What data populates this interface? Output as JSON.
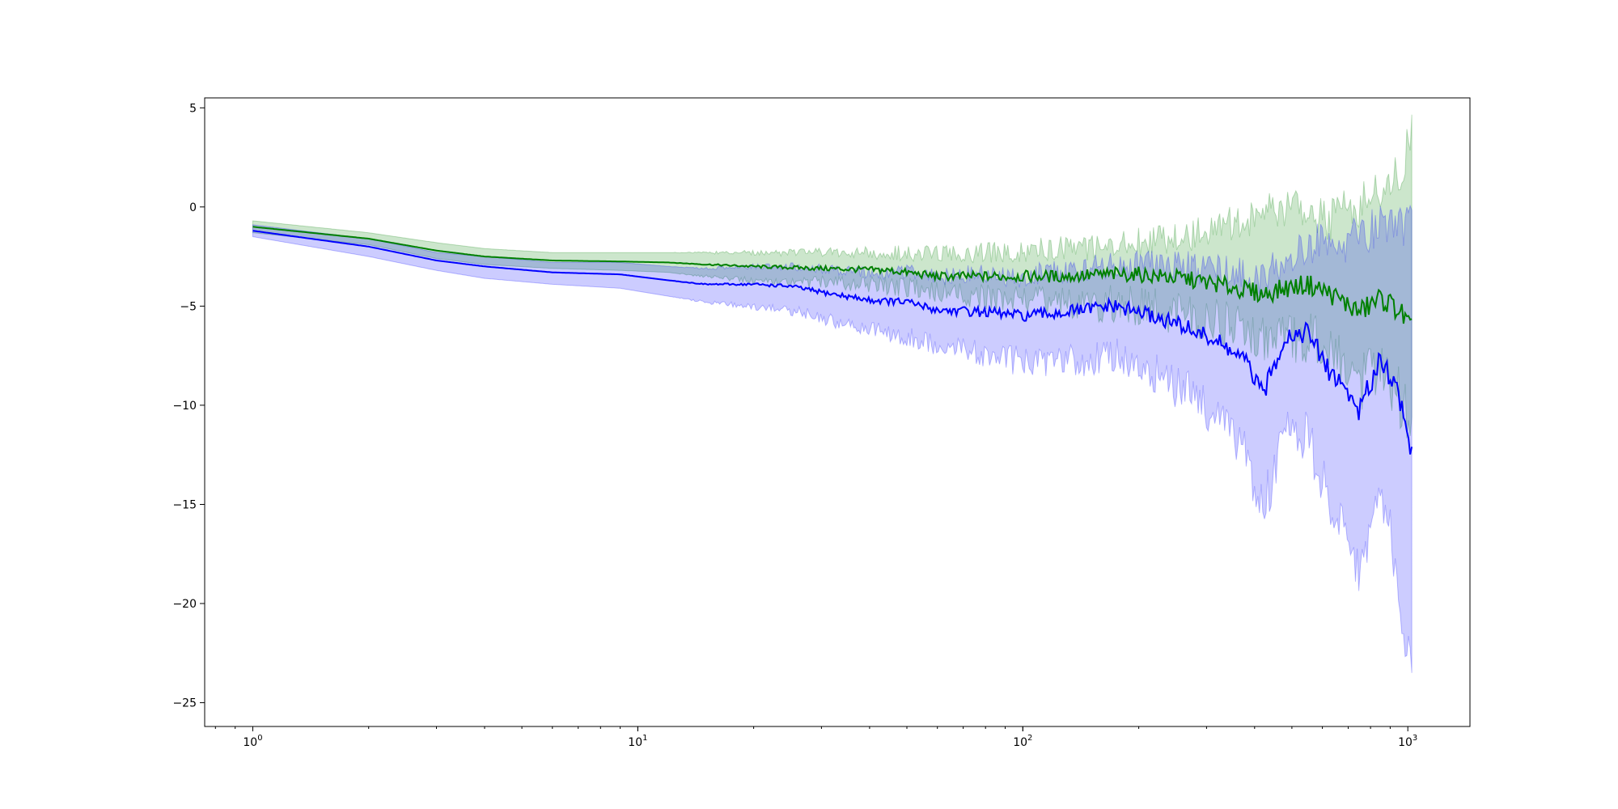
{
  "chart_data": {
    "type": "line",
    "title": "",
    "xlabel": "",
    "ylabel": "",
    "x_scale": "log",
    "xlim": [
      0.75,
      1450
    ],
    "ylim": [
      -26.2,
      5.5
    ],
    "grid": false,
    "legend": null,
    "x_ticks": [
      {
        "value": 1,
        "base": "10",
        "exp": "0"
      },
      {
        "value": 10,
        "base": "10",
        "exp": "1"
      },
      {
        "value": 100,
        "base": "10",
        "exp": "2"
      },
      {
        "value": 1000,
        "base": "10",
        "exp": "3"
      }
    ],
    "y_ticks": [
      {
        "value": 5,
        "label": "5"
      },
      {
        "value": 0,
        "label": "0"
      },
      {
        "value": -5,
        "label": "−5"
      },
      {
        "value": -10,
        "label": "−10"
      },
      {
        "value": -15,
        "label": "−15"
      },
      {
        "value": -20,
        "label": "−20"
      },
      {
        "value": -25,
        "label": "−25"
      }
    ],
    "series": [
      {
        "color": "#008000",
        "band_color": "#008000",
        "band_opacity": 0.2,
        "x": [
          1,
          2,
          3,
          4,
          6,
          9,
          12,
          15,
          20,
          30,
          45,
          60,
          80,
          100,
          130,
          170,
          200,
          260,
          320,
          380,
          420,
          480,
          550,
          620,
          680,
          750,
          850,
          950,
          1024
        ],
        "y": [
          -1.0,
          -1.6,
          -2.2,
          -2.5,
          -2.7,
          -2.75,
          -2.8,
          -2.9,
          -3.0,
          -3.1,
          -3.2,
          -3.5,
          -3.5,
          -3.5,
          -3.5,
          -3.4,
          -3.4,
          -3.6,
          -3.9,
          -4.2,
          -4.4,
          -4.1,
          -3.9,
          -4.3,
          -4.8,
          -5.3,
          -4.6,
          -5.2,
          -6.2
        ],
        "lower": [
          -1.3,
          -1.9,
          -2.6,
          -2.9,
          -3.1,
          -3.2,
          -3.3,
          -3.5,
          -3.7,
          -3.8,
          -4.0,
          -4.3,
          -4.5,
          -4.7,
          -4.8,
          -4.9,
          -5.0,
          -5.4,
          -5.8,
          -6.2,
          -6.8,
          -6.5,
          -6.6,
          -7.2,
          -8.0,
          -8.8,
          -8.5,
          -9.5,
          -11.0
        ],
        "upper": [
          -0.7,
          -1.3,
          -1.8,
          -2.1,
          -2.3,
          -2.3,
          -2.3,
          -2.3,
          -2.3,
          -2.3,
          -2.3,
          -2.4,
          -2.3,
          -2.2,
          -2.1,
          -1.9,
          -1.7,
          -1.5,
          -1.0,
          -0.6,
          -0.3,
          0.0,
          -0.2,
          -0.8,
          0.2,
          0.0,
          0.8,
          1.8,
          3.8
        ]
      },
      {
        "color": "#0000ff",
        "band_color": "#0000ff",
        "band_opacity": 0.2,
        "x": [
          1,
          2,
          3,
          4,
          6,
          9,
          12,
          15,
          20,
          25,
          30,
          40,
          50,
          60,
          80,
          100,
          130,
          170,
          200,
          260,
          320,
          380,
          420,
          480,
          550,
          620,
          680,
          750,
          850,
          950,
          1024
        ],
        "y": [
          -1.2,
          -2.0,
          -2.7,
          -3.0,
          -3.3,
          -3.4,
          -3.7,
          -3.9,
          -3.9,
          -4.0,
          -4.3,
          -4.7,
          -4.8,
          -5.2,
          -5.3,
          -5.5,
          -5.3,
          -5.0,
          -5.3,
          -6.0,
          -6.8,
          -7.8,
          -9.5,
          -6.5,
          -6.3,
          -8.2,
          -9.0,
          -10.3,
          -7.5,
          -9.5,
          -12.5
        ],
        "lower": [
          -1.5,
          -2.5,
          -3.2,
          -3.6,
          -3.9,
          -4.1,
          -4.5,
          -4.8,
          -5.0,
          -5.2,
          -5.6,
          -6.2,
          -6.5,
          -7.0,
          -7.4,
          -7.8,
          -7.8,
          -7.5,
          -8.0,
          -9.2,
          -10.5,
          -12.5,
          -15.5,
          -11.0,
          -11.5,
          -14.5,
          -16.5,
          -18.5,
          -14.0,
          -19.0,
          -24.5
        ],
        "upper": [
          -0.9,
          -1.6,
          -2.3,
          -2.5,
          -2.8,
          -2.8,
          -3.0,
          -3.1,
          -3.0,
          -3.0,
          -3.1,
          -3.3,
          -3.3,
          -3.5,
          -3.4,
          -3.5,
          -3.2,
          -2.9,
          -2.9,
          -3.0,
          -3.1,
          -3.2,
          -3.8,
          -2.5,
          -2.0,
          -1.6,
          -1.8,
          -1.5,
          -1.0,
          -1.2,
          -0.5
        ]
      }
    ]
  }
}
